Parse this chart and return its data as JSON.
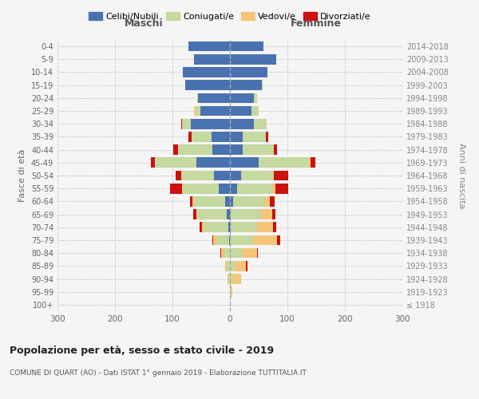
{
  "age_groups": [
    "100+",
    "95-99",
    "90-94",
    "85-89",
    "80-84",
    "75-79",
    "70-74",
    "65-69",
    "60-64",
    "55-59",
    "50-54",
    "45-49",
    "40-44",
    "35-39",
    "30-34",
    "25-29",
    "20-24",
    "15-19",
    "10-14",
    "5-9",
    "0-4"
  ],
  "birth_years": [
    "≤ 1918",
    "1919-1923",
    "1924-1928",
    "1929-1933",
    "1934-1938",
    "1939-1943",
    "1944-1948",
    "1949-1953",
    "1954-1958",
    "1959-1963",
    "1964-1968",
    "1969-1973",
    "1974-1978",
    "1979-1983",
    "1984-1988",
    "1989-1993",
    "1994-1998",
    "1999-2003",
    "2004-2008",
    "2009-2013",
    "2014-2018"
  ],
  "males": {
    "celibi": [
      0,
      0,
      0,
      0,
      0,
      2,
      3,
      5,
      8,
      20,
      28,
      58,
      30,
      32,
      68,
      52,
      55,
      78,
      82,
      62,
      72
    ],
    "coniugati": [
      0,
      0,
      2,
      5,
      10,
      22,
      42,
      52,
      55,
      62,
      55,
      72,
      60,
      35,
      15,
      8,
      2,
      0,
      0,
      0,
      0
    ],
    "vedovi": [
      0,
      0,
      2,
      4,
      5,
      5,
      3,
      2,
      2,
      2,
      2,
      0,
      0,
      0,
      0,
      2,
      0,
      0,
      0,
      0,
      0
    ],
    "divorziati": [
      0,
      0,
      0,
      0,
      2,
      2,
      5,
      5,
      5,
      20,
      10,
      8,
      8,
      5,
      2,
      0,
      0,
      0,
      0,
      0,
      0
    ]
  },
  "females": {
    "nubili": [
      0,
      0,
      0,
      0,
      0,
      0,
      2,
      2,
      5,
      12,
      20,
      50,
      22,
      22,
      42,
      38,
      42,
      55,
      65,
      80,
      58
    ],
    "coniugate": [
      0,
      2,
      5,
      8,
      22,
      40,
      45,
      52,
      55,
      62,
      55,
      88,
      55,
      40,
      22,
      12,
      5,
      2,
      0,
      0,
      0
    ],
    "vedove": [
      0,
      2,
      15,
      20,
      25,
      42,
      28,
      20,
      10,
      5,
      2,
      2,
      0,
      0,
      0,
      0,
      0,
      0,
      0,
      0,
      0
    ],
    "divorziate": [
      0,
      0,
      0,
      2,
      2,
      5,
      5,
      5,
      8,
      22,
      25,
      8,
      5,
      5,
      0,
      0,
      0,
      0,
      0,
      0,
      0
    ]
  },
  "colors": {
    "celibi": "#4a72b0",
    "coniugati": "#c5d9a0",
    "vedovi": "#f5c57a",
    "divorziati": "#cc1111"
  },
  "xlim": 300,
  "title": "Popolazione per età, sesso e stato civile - 2019",
  "subtitle": "COMUNE DI QUART (AO) - Dati ISTAT 1° gennaio 2019 - Elaborazione TUTTITALIA.IT",
  "ylabel_left": "Fasce di età",
  "ylabel_right": "Anni di nascita",
  "legend_labels": [
    "Celibi/Nubili",
    "Coniugati/e",
    "Vedovi/e",
    "Divorziati/e"
  ],
  "maschi_label": "Maschi",
  "femmine_label": "Femmine",
  "bg_color": "#f5f5f5"
}
